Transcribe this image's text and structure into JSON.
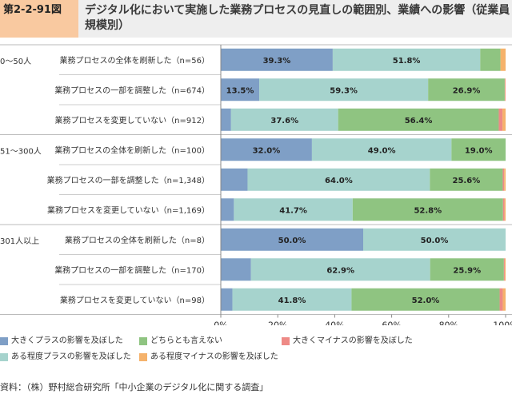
{
  "figure_tag": "第2-2-91図",
  "title": "デジタル化において実施した業務プロセスの見直しの範囲別、業績への影響（従業員規模別）",
  "source": "資料：（株）野村総合研究所「中小企業のデジタル化に関する調査」",
  "chart_data": {
    "type": "bar",
    "orientation": "horizontal",
    "stacked": true,
    "xlim": [
      0,
      100
    ],
    "x_ticks": [
      "0%",
      "20%",
      "40%",
      "60%",
      "80%",
      "100%"
    ],
    "groups": [
      {
        "name": "0〜50人",
        "rows": [
          {
            "label": "業務プロセスの全体を刷新した（n=56）",
            "values": [
              39.3,
              51.8,
              7.1,
              0,
              1.8
            ],
            "labels": [
              "39.3%",
              "51.8%",
              "",
              "",
              ""
            ]
          },
          {
            "label": "業務プロセスの一部を調整した（n=674）",
            "values": [
              13.5,
              59.3,
              26.9,
              0.2,
              0.1
            ],
            "labels": [
              "13.5%",
              "59.3%",
              "26.9%",
              "",
              ""
            ]
          },
          {
            "label": "業務プロセスを変更していない（n=912）",
            "values": [
              3.6,
              37.6,
              56.4,
              1.3,
              1.1
            ],
            "labels": [
              "",
              "37.6%",
              "56.4%",
              "",
              ""
            ]
          }
        ]
      },
      {
        "name": "51〜300人",
        "rows": [
          {
            "label": "業務プロセスの全体を刷新した（n=100）",
            "values": [
              32.0,
              49.0,
              19.0,
              0,
              0
            ],
            "labels": [
              "32.0%",
              "49.0%",
              "19.0%",
              "",
              ""
            ]
          },
          {
            "label": "業務プロセスの一部を調整した（n=1,348）",
            "values": [
              9.4,
              64.0,
              25.6,
              0.5,
              0.5
            ],
            "labels": [
              "",
              "64.0%",
              "25.6%",
              "",
              ""
            ]
          },
          {
            "label": "業務プロセスを変更していない（n=1,169）",
            "values": [
              4.6,
              41.7,
              52.8,
              0.5,
              0.4
            ],
            "labels": [
              "",
              "41.7%",
              "52.8%",
              "",
              ""
            ]
          }
        ]
      },
      {
        "name": "301人以上",
        "rows": [
          {
            "label": "業務プロセスの全体を刷新した（n=8）",
            "values": [
              50.0,
              50.0,
              0,
              0,
              0
            ],
            "labels": [
              "50.0%",
              "50.0%",
              "",
              "",
              ""
            ]
          },
          {
            "label": "業務プロセスの一部を調整した（n=170）",
            "values": [
              10.6,
              62.9,
              25.9,
              0.3,
              0.3
            ],
            "labels": [
              "",
              "62.9%",
              "25.9%",
              "",
              ""
            ]
          },
          {
            "label": "業務プロセスを変更していない（n=98）",
            "values": [
              4.1,
              41.8,
              52.0,
              1.1,
              1.0
            ],
            "labels": [
              "",
              "41.8%",
              "52.0%",
              "",
              ""
            ]
          }
        ]
      }
    ],
    "series": [
      {
        "name": "大きくプラスの影響を及ぼした",
        "color": "#7f9fc6"
      },
      {
        "name": "ある程度プラスの影響を及ぼした",
        "color": "#a6d3cd"
      },
      {
        "name": "どちらとも言えない",
        "color": "#8fc481"
      },
      {
        "name": "大きくマイナスの影響を及ぼした",
        "color": "#ee8a86"
      },
      {
        "name": "ある程度マイナスの影響を及ぼした",
        "color": "#f5b26b"
      }
    ],
    "legend_position": "bottom",
    "grid": false
  }
}
